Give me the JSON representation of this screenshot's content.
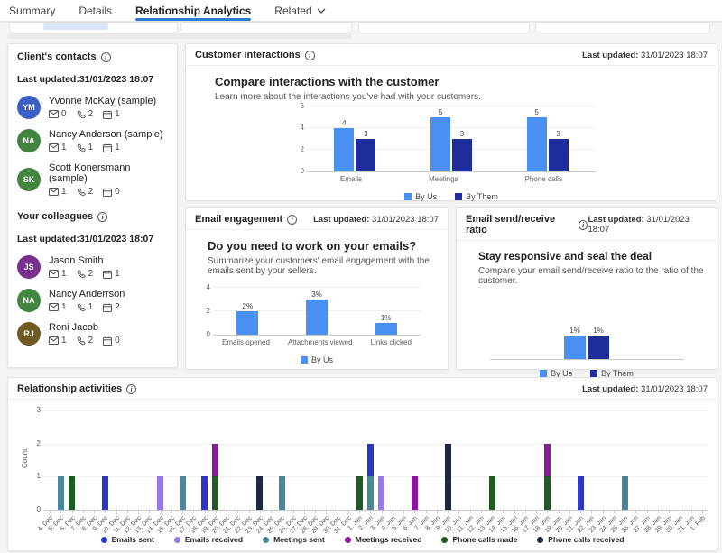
{
  "tabs": {
    "items": [
      {
        "label": "Summary",
        "active": false,
        "has_dropdown": false
      },
      {
        "label": "Details",
        "active": false,
        "has_dropdown": false
      },
      {
        "label": "Relationship Analytics",
        "active": true,
        "has_dropdown": false
      },
      {
        "label": "Related",
        "active": false,
        "has_dropdown": true
      }
    ]
  },
  "colors": {
    "accent": "#2b7cd3",
    "by_us": "#4a90f2",
    "by_them": "#1e2d9b"
  },
  "contacts_card": {
    "title": "Client's contacts",
    "last_updated": "Last updated:31/01/2023 18:07",
    "contacts": [
      {
        "initials": "YM",
        "name": "Yvonne McKay (sample)",
        "emails": "0",
        "calls": "2",
        "meetings": "1",
        "color": "#3b5fc4"
      },
      {
        "initials": "NA",
        "name": "Nancy Anderson (sample)",
        "emails": "1",
        "calls": "1",
        "meetings": "1",
        "color": "#418541"
      },
      {
        "initials": "SK",
        "name": "Scott Konersmann (sample)",
        "emails": "1",
        "calls": "2",
        "meetings": "0",
        "color": "#418541"
      }
    ],
    "colleagues_title": "Your colleagues",
    "colleagues_last_updated": "Last updated:31/01/2023 18:07",
    "colleagues": [
      {
        "initials": "JS",
        "name": "Jason Smith",
        "emails": "1",
        "calls": "2",
        "meetings": "1",
        "color": "#7a2f8f"
      },
      {
        "initials": "NA",
        "name": "Nancy Anderrson",
        "emails": "1",
        "calls": "1",
        "meetings": "2",
        "color": "#418541"
      },
      {
        "initials": "RJ",
        "name": "Roni Jacob",
        "emails": "1",
        "calls": "2",
        "meetings": "0",
        "color": "#6e5a22"
      }
    ]
  },
  "customer_interactions": {
    "title": "Customer interactions",
    "updated_prefix": "Last updated:",
    "updated_value": "31/01/2023 18:07",
    "heading": "Compare interactions with the customer",
    "subtitle": "Learn more about the interactions you've had with your customers."
  },
  "email_engagement": {
    "title": "Email engagement",
    "updated_prefix": "Last updated:",
    "updated_value": "31/01/2023 18:07",
    "heading": "Do you need to work on your emails?",
    "subtitle": "Summarize your customers' email engagement with the emails sent by your sellers."
  },
  "send_receive": {
    "title": "Email send/receive ratio",
    "updated_prefix": "Last updated:",
    "updated_value": "31/01/2023 18:07",
    "heading": "Stay responsive and seal the deal",
    "subtitle": "Compare your email send/receive ratio to the ratio of the customer."
  },
  "relationship_activities": {
    "title": "Relationship activities",
    "updated_prefix": "Last updated:",
    "updated_value": "31/01/2023 18:07"
  },
  "chart_data": [
    {
      "id": "customer-interactions",
      "type": "bar",
      "categories": [
        "Emails",
        "Meetings",
        "Phone calls"
      ],
      "series": [
        {
          "name": "By Us",
          "color": "#4a90f2",
          "values": [
            4,
            5,
            5
          ]
        },
        {
          "name": "By Them",
          "color": "#1e2d9b",
          "values": [
            3,
            3,
            3
          ]
        }
      ],
      "ylim": [
        0,
        6
      ],
      "yticks": [
        0,
        2,
        4,
        6
      ],
      "legend_position": "bottom",
      "grid": true
    },
    {
      "id": "email-engagement",
      "type": "bar",
      "categories": [
        "Emails opened",
        "Attachments viewed",
        "Links clicked"
      ],
      "series": [
        {
          "name": "By Us",
          "color": "#4a90f2",
          "values": [
            2,
            3,
            1
          ],
          "labels": [
            "2%",
            "3%",
            "1%"
          ]
        }
      ],
      "ylim": [
        0,
        4
      ],
      "yticks": [
        0,
        2,
        4
      ],
      "legend_position": "bottom",
      "grid": true
    },
    {
      "id": "email-send-receive-ratio",
      "type": "bar",
      "categories": [
        ""
      ],
      "series": [
        {
          "name": "By Us",
          "color": "#4a90f2",
          "values": [
            1
          ],
          "labels": [
            "1%"
          ]
        },
        {
          "name": "By Them",
          "color": "#1e2d9b",
          "values": [
            1
          ],
          "labels": [
            "1%"
          ]
        }
      ],
      "ylim": [
        0,
        2
      ],
      "yticks": [],
      "legend_position": "bottom",
      "grid": false
    },
    {
      "id": "relationship-activities",
      "type": "bar",
      "stacked": true,
      "ylabel": "Count",
      "ylim": [
        0,
        3
      ],
      "yticks": [
        0,
        1,
        2,
        3
      ],
      "legend_position": "bottom",
      "grid": true,
      "categories": [
        "4. Dec",
        "5. Dec",
        "6. Dec",
        "7. Dec",
        "8. Dec",
        "9. Dec",
        "10. Dec",
        "11. Dec",
        "12. Dec",
        "13. Dec",
        "14. Dec",
        "15. Dec",
        "16. Dec",
        "17. Dec",
        "18. Dec",
        "19. Dec",
        "20. Dec",
        "21. Dec",
        "22. Dec",
        "23. Dec",
        "24. Dec",
        "25. Dec",
        "26. Dec",
        "27. Dec",
        "28. Dec",
        "29. Dec",
        "30. Dec",
        "31. Dec",
        "1. Jan",
        "2. Jan",
        "3. Jan",
        "4. Jan",
        "5. Jan",
        "6. Jan",
        "7. Jan",
        "8. Jan",
        "9. Jan",
        "10. Jan",
        "11. Jan",
        "12. Jan",
        "13. Jan",
        "14. Jan",
        "15. Jan",
        "16. Jan",
        "17. Jan",
        "18. Jan",
        "19. Jan",
        "20. Jan",
        "21. Jan",
        "22. Jan",
        "23. Jan",
        "24. Jan",
        "25. Jan",
        "26. Jan",
        "27. Jan",
        "28. Jan",
        "29. Jan",
        "30. Jan",
        "31. Jan",
        "1. Feb"
      ],
      "series": [
        {
          "name": "Emails sent",
          "color": "#2b35c7"
        },
        {
          "name": "Emails received",
          "color": "#9678e8"
        },
        {
          "name": "Meetings sent",
          "color": "#47889c"
        },
        {
          "name": "Meetings received",
          "color": "#8e159e"
        },
        {
          "name": "Phone calls made",
          "color": "#1d5a24"
        },
        {
          "name": "Phone calls received",
          "color": "#1a2744"
        }
      ],
      "bars": [
        {
          "date": "5. Dec",
          "segments": [
            {
              "name": "Meetings sent",
              "value": 1
            }
          ]
        },
        {
          "date": "6. Dec",
          "segments": [
            {
              "name": "Phone calls made",
              "value": 1
            }
          ]
        },
        {
          "date": "9. Dec",
          "segments": [
            {
              "name": "Emails sent",
              "value": 1
            }
          ]
        },
        {
          "date": "14. Dec",
          "segments": [
            {
              "name": "Emails received",
              "value": 1
            }
          ]
        },
        {
          "date": "16. Dec",
          "segments": [
            {
              "name": "Meetings sent",
              "value": 1
            }
          ]
        },
        {
          "date": "18. Dec",
          "segments": [
            {
              "name": "Emails sent",
              "value": 1
            }
          ]
        },
        {
          "date": "19. Dec",
          "segments": [
            {
              "name": "Phone calls made",
              "value": 1
            },
            {
              "name": "Meetings received",
              "value": 1
            }
          ]
        },
        {
          "date": "23. Dec",
          "segments": [
            {
              "name": "Phone calls received",
              "value": 1
            }
          ]
        },
        {
          "date": "25. Dec",
          "segments": [
            {
              "name": "Meetings sent",
              "value": 1
            }
          ]
        },
        {
          "date": "1. Jan",
          "segments": [
            {
              "name": "Phone calls made",
              "value": 1
            }
          ]
        },
        {
          "date": "2. Jan",
          "segments": [
            {
              "name": "Meetings sent",
              "value": 1
            },
            {
              "name": "Emails sent",
              "value": 1
            }
          ]
        },
        {
          "date": "3. Jan",
          "segments": [
            {
              "name": "Emails received",
              "value": 1
            }
          ]
        },
        {
          "date": "6. Jan",
          "segments": [
            {
              "name": "Meetings received",
              "value": 1
            }
          ]
        },
        {
          "date": "9. Jan",
          "segments": [
            {
              "name": "Phone calls received",
              "value": 2
            }
          ]
        },
        {
          "date": "13. Jan",
          "segments": [
            {
              "name": "Phone calls made",
              "value": 1
            }
          ]
        },
        {
          "date": "18. Jan",
          "segments": [
            {
              "name": "Phone calls made",
              "value": 1
            },
            {
              "name": "Meetings received",
              "value": 1
            }
          ]
        },
        {
          "date": "21. Jan",
          "segments": [
            {
              "name": "Emails sent",
              "value": 1
            }
          ]
        },
        {
          "date": "25. Jan",
          "segments": [
            {
              "name": "Meetings sent",
              "value": 1
            }
          ]
        }
      ]
    }
  ]
}
